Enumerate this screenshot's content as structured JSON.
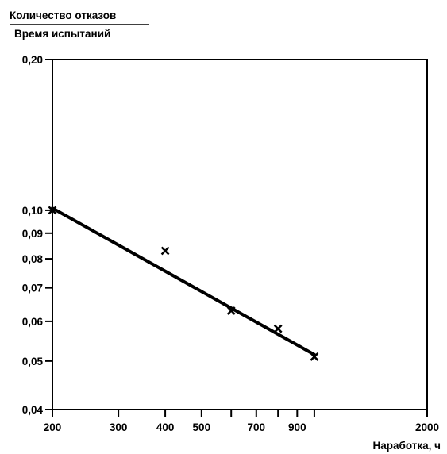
{
  "chart_data": {
    "type": "scatter",
    "ylabel_numerator": "Количество отказов",
    "ylabel_denominator": "Время испытаний",
    "xlabel": "Наработка, ч",
    "x_scale": "log",
    "y_scale": "log",
    "xlim": [
      200,
      2000
    ],
    "ylim": [
      0.04,
      0.2
    ],
    "x_ticks": [
      {
        "value": 200,
        "label": "200"
      },
      {
        "value": 300,
        "label": "300"
      },
      {
        "value": 400,
        "label": "400"
      },
      {
        "value": 500,
        "label": "500"
      },
      {
        "value": 700,
        "label": "700"
      },
      {
        "value": 900,
        "label": "900"
      },
      {
        "value": 2000,
        "label": "2000"
      }
    ],
    "x_minor_ticks": [
      600,
      800,
      1000
    ],
    "y_ticks": [
      {
        "value": 0.04,
        "label": "0,04"
      },
      {
        "value": 0.05,
        "label": "0,05"
      },
      {
        "value": 0.06,
        "label": "0,06"
      },
      {
        "value": 0.07,
        "label": "0,07"
      },
      {
        "value": 0.08,
        "label": "0,08"
      },
      {
        "value": 0.09,
        "label": "0,09"
      },
      {
        "value": 0.1,
        "label": "0,10"
      },
      {
        "value": 0.2,
        "label": "0,20"
      }
    ],
    "grid": false,
    "points": [
      {
        "x": 200,
        "y": 0.1
      },
      {
        "x": 400,
        "y": 0.083
      },
      {
        "x": 600,
        "y": 0.063
      },
      {
        "x": 800,
        "y": 0.058
      },
      {
        "x": 1000,
        "y": 0.051
      }
    ],
    "fit_line": {
      "x": [
        200,
        1000
      ],
      "y": [
        0.101,
        0.0515
      ]
    },
    "colors": {
      "ink": "#000000",
      "background": "#ffffff"
    }
  }
}
